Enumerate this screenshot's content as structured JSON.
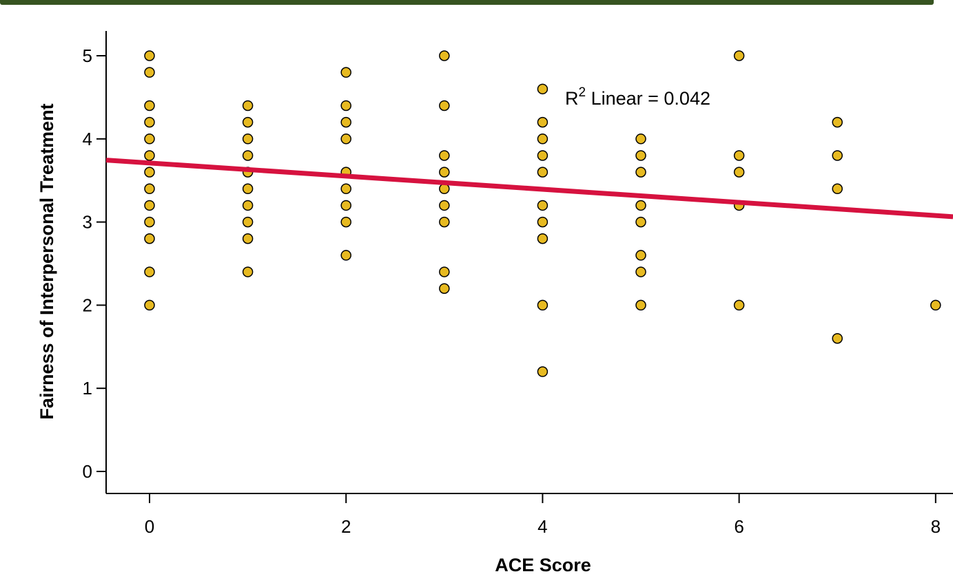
{
  "chart_data": {
    "type": "scatter",
    "title": "",
    "xlabel": "ACE Score",
    "ylabel": "Fairness of Interpersonal Treatment",
    "xlim": [
      -0.45,
      8.2
    ],
    "ylim": [
      0,
      5.3
    ],
    "x_ticks": [
      0,
      2,
      4,
      6,
      8
    ],
    "y_ticks": [
      0,
      1,
      2,
      3,
      4,
      5
    ],
    "grid": false,
    "legend": "none",
    "colors": {
      "point_fill": "#E7BA21",
      "point_stroke": "#000000",
      "fit_line": "#D6123F",
      "header_bar": "#375421"
    },
    "annotation": {
      "base": "R",
      "superscript": "2",
      "text": " Linear = 0.042"
    },
    "fit_line": {
      "slope": -0.079,
      "intercept": 3.71
    },
    "points": [
      [
        0,
        5.0
      ],
      [
        0,
        4.8
      ],
      [
        0,
        4.4
      ],
      [
        0,
        4.2
      ],
      [
        0,
        4.0
      ],
      [
        0,
        3.8
      ],
      [
        0,
        3.6
      ],
      [
        0,
        3.4
      ],
      [
        0,
        3.2
      ],
      [
        0,
        3.0
      ],
      [
        0,
        2.8
      ],
      [
        0,
        2.4
      ],
      [
        0,
        2.0
      ],
      [
        1,
        4.4
      ],
      [
        1,
        4.2
      ],
      [
        1,
        4.0
      ],
      [
        1,
        3.8
      ],
      [
        1,
        3.6
      ],
      [
        1,
        3.4
      ],
      [
        1,
        3.2
      ],
      [
        1,
        3.0
      ],
      [
        1,
        2.8
      ],
      [
        1,
        2.4
      ],
      [
        2,
        4.8
      ],
      [
        2,
        4.4
      ],
      [
        2,
        4.2
      ],
      [
        2,
        4.0
      ],
      [
        2,
        3.6
      ],
      [
        2,
        3.4
      ],
      [
        2,
        3.2
      ],
      [
        2,
        3.0
      ],
      [
        2,
        2.6
      ],
      [
        3,
        5.0
      ],
      [
        3,
        4.4
      ],
      [
        3,
        3.8
      ],
      [
        3,
        3.6
      ],
      [
        3,
        3.4
      ],
      [
        3,
        3.2
      ],
      [
        3,
        3.0
      ],
      [
        3,
        2.4
      ],
      [
        3,
        2.2
      ],
      [
        4,
        4.6
      ],
      [
        4,
        4.2
      ],
      [
        4,
        4.0
      ],
      [
        4,
        3.8
      ],
      [
        4,
        3.6
      ],
      [
        4,
        3.2
      ],
      [
        4,
        3.0
      ],
      [
        4,
        2.8
      ],
      [
        4,
        2.0
      ],
      [
        4,
        1.2
      ],
      [
        5,
        4.0
      ],
      [
        5,
        3.8
      ],
      [
        5,
        3.6
      ],
      [
        5,
        3.2
      ],
      [
        5,
        3.0
      ],
      [
        5,
        2.6
      ],
      [
        5,
        2.4
      ],
      [
        5,
        2.0
      ],
      [
        6,
        5.0
      ],
      [
        6,
        3.8
      ],
      [
        6,
        3.6
      ],
      [
        6,
        3.2
      ],
      [
        6,
        2.0
      ],
      [
        7,
        4.2
      ],
      [
        7,
        3.8
      ],
      [
        7,
        3.4
      ],
      [
        7,
        1.6
      ],
      [
        8,
        2.0
      ]
    ]
  }
}
